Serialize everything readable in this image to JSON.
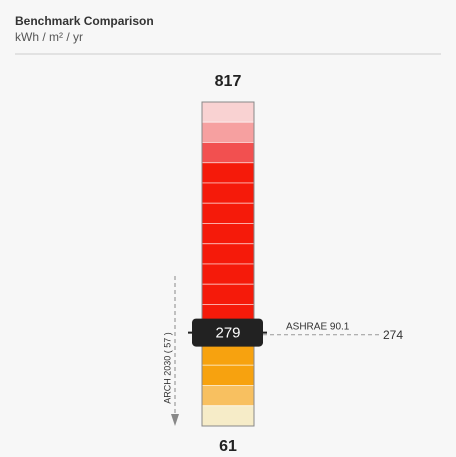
{
  "header": {
    "title": "Benchmark Comparison",
    "subtitle": "kWh / m² / yr"
  },
  "gauge": {
    "max": 817,
    "min": 61,
    "current": 279,
    "reference": {
      "label": "ASHRAE 90.1",
      "value": 274
    },
    "target_label": "ARCH 2030 ( 57 )"
  }
}
